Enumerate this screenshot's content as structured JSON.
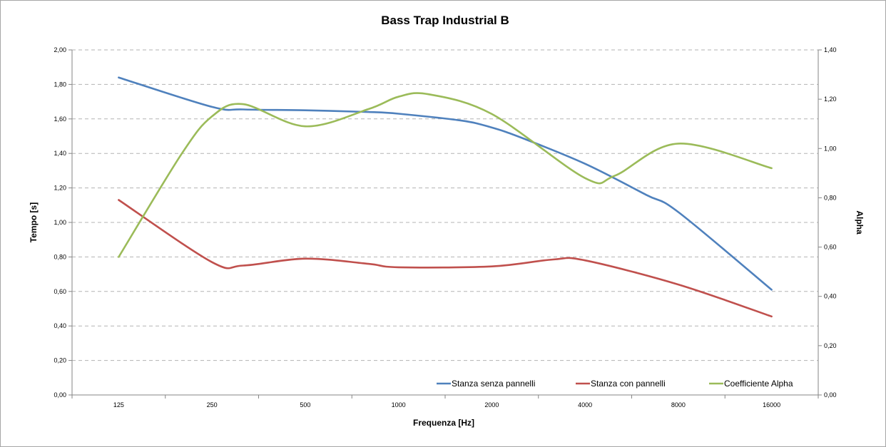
{
  "chart_data": {
    "type": "line",
    "title": "Bass Trap Industrial B",
    "xlabel": "Frequenza [Hz]",
    "ylabel": "Tempo [s]",
    "y2label": "Alpha",
    "categories": [
      "125",
      "250",
      "500",
      "1000",
      "2000",
      "4000",
      "8000",
      "16000"
    ],
    "x_scale": "log2",
    "ylim": [
      0,
      2
    ],
    "y_ticks": [
      "0,00",
      "0,20",
      "0,40",
      "0,60",
      "0,80",
      "1,00",
      "1,20",
      "1,40",
      "1,60",
      "1,80",
      "2,00"
    ],
    "y2lim": [
      0,
      1.4
    ],
    "y2_ticks": [
      "0,00",
      "0,20",
      "0,40",
      "0,60",
      "0,80",
      "1,00",
      "1,20",
      "1,40"
    ],
    "grid": "horizontal-dashed",
    "legend_position": "bottom-right",
    "series": [
      {
        "name": "Stanza senza pannelli",
        "axis": "left",
        "color": "#4f81bd",
        "x": [
          125,
          250,
          315,
          500,
          800,
          1000,
          1600,
          2000,
          2500,
          4000,
          6300,
          8000,
          16000
        ],
        "values": [
          1.84,
          1.67,
          1.655,
          1.65,
          1.64,
          1.63,
          1.59,
          1.55,
          1.49,
          1.34,
          1.16,
          1.06,
          0.61
        ]
      },
      {
        "name": "Stanza con pannelli",
        "axis": "left",
        "color": "#c0504d",
        "x": [
          125,
          250,
          315,
          500,
          800,
          1000,
          2000,
          3150,
          4000,
          8000,
          16000
        ],
        "values": [
          1.13,
          0.77,
          0.75,
          0.79,
          0.76,
          0.74,
          0.745,
          0.785,
          0.78,
          0.64,
          0.455
        ]
      },
      {
        "name": "Coefficiente Alpha",
        "axis": "right",
        "color": "#9bbb59",
        "x": [
          125,
          200,
          250,
          315,
          500,
          800,
          1000,
          1250,
          2000,
          4000,
          5000,
          8000,
          16000
        ],
        "values": [
          0.56,
          0.98,
          1.13,
          1.18,
          1.09,
          1.16,
          1.21,
          1.22,
          1.14,
          0.88,
          0.89,
          1.02,
          0.92
        ]
      }
    ]
  }
}
